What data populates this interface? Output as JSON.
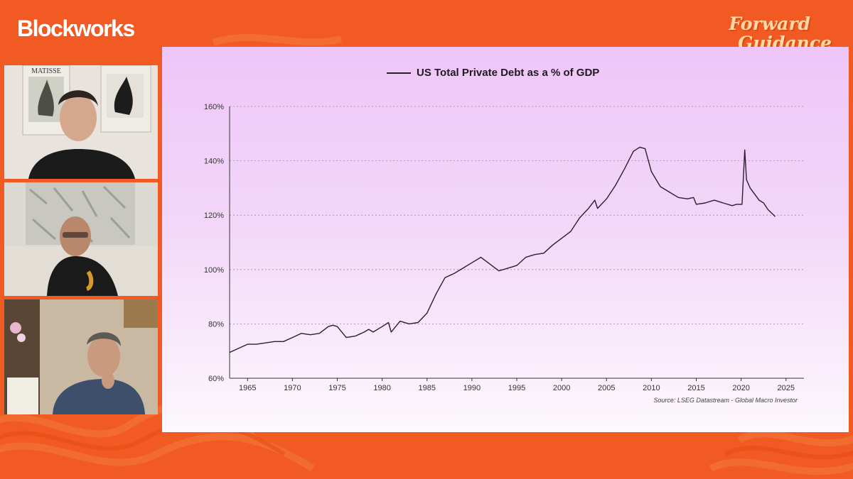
{
  "header": {
    "brand": "Blockworks",
    "show_line1": "Forward",
    "show_line2": "Guidance"
  },
  "colors": {
    "background": "#f15a22",
    "chart_line": "#2a1f2d",
    "card_top": "#eec6f8",
    "card_bottom": "#fdf8fd"
  },
  "participants": [
    {
      "poster_text": "MATISSE"
    },
    {
      "poster_text": ""
    },
    {
      "poster_text": ""
    }
  ],
  "chart_data": {
    "type": "line",
    "title": "US Total Private Debt as a % of GDP",
    "source": "Source: LSEG Datastream - Global Macro Investor",
    "xlabel": "",
    "ylabel": "",
    "xlim": [
      1963,
      2027
    ],
    "ylim": [
      60,
      160
    ],
    "x_ticks": [
      1965,
      1970,
      1975,
      1980,
      1985,
      1990,
      1995,
      2000,
      2005,
      2010,
      2015,
      2020,
      2025
    ],
    "y_ticks": [
      60,
      80,
      100,
      120,
      140,
      160
    ],
    "y_tick_labels": [
      "60%",
      "80%",
      "100%",
      "120%",
      "140%",
      "160%"
    ],
    "grid": "horizontal dashed",
    "legend": "top-center",
    "series": [
      {
        "name": "US Total Private Debt as a % of GDP",
        "x": [
          1963,
          1964,
          1965,
          1966,
          1967,
          1968,
          1969,
          1970,
          1971,
          1972,
          1973,
          1974,
          1974.5,
          1975,
          1976,
          1977,
          1978,
          1978.5,
          1979,
          1980,
          1980.7,
          1981,
          1982,
          1983,
          1984,
          1985,
          1986,
          1987,
          1988,
          1989,
          1990,
          1991,
          1992,
          1993,
          1994,
          1995,
          1996,
          1997,
          1998,
          1999,
          2000,
          2001,
          2002,
          2003,
          2003.7,
          2004,
          2005,
          2006,
          2007,
          2008,
          2008.7,
          2009.3,
          2010,
          2011,
          2012,
          2013,
          2014,
          2014.7,
          2015,
          2016,
          2017,
          2018,
          2019,
          2019.5,
          2020.1,
          2020.4,
          2020.6,
          2021,
          2022,
          2022.5,
          2023,
          2023.8
        ],
        "values": [
          69.5,
          71,
          72.5,
          72.5,
          73,
          73.5,
          73.5,
          75,
          76.5,
          76,
          76.5,
          79,
          79.5,
          79,
          75,
          75.5,
          77,
          78,
          77,
          79,
          80.5,
          77,
          81,
          80,
          80.5,
          84,
          91,
          97,
          98.5,
          100.5,
          102.5,
          104.5,
          102,
          99.5,
          100.5,
          101.5,
          104.5,
          105.5,
          106,
          109,
          111.5,
          114,
          119,
          122.5,
          125.5,
          122.5,
          126,
          131,
          137,
          143.5,
          145,
          144.5,
          136,
          130.5,
          128.5,
          126.5,
          126,
          126.5,
          124,
          124.5,
          125.5,
          124.5,
          123.5,
          124,
          124,
          144,
          133,
          130,
          125.5,
          124.5,
          122,
          119.5
        ]
      }
    ]
  }
}
